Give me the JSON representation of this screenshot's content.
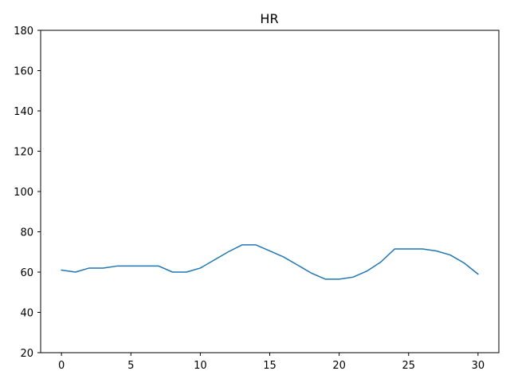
{
  "chart_data": {
    "type": "line",
    "title": "HR",
    "xlabel": "",
    "ylabel": "",
    "xlim": [
      -1.5,
      31.5
    ],
    "ylim": [
      20,
      180
    ],
    "xticks": [
      0,
      5,
      10,
      15,
      20,
      25,
      30
    ],
    "yticks": [
      20,
      40,
      60,
      80,
      100,
      120,
      140,
      160,
      180
    ],
    "grid": false,
    "legend": "none",
    "series": [
      {
        "color": "#1f77b4",
        "x": [
          0,
          1,
          2,
          3,
          4,
          5,
          6,
          7,
          8,
          9,
          10,
          11,
          12,
          13,
          14,
          15,
          16,
          17,
          18,
          19,
          20,
          21,
          22,
          23,
          24,
          25,
          26,
          27,
          28,
          29,
          30
        ],
        "values": [
          61,
          60,
          62,
          62,
          63,
          63,
          63,
          63,
          60,
          60,
          62,
          66,
          70,
          73.5,
          73.5,
          70.5,
          67.5,
          63.5,
          59.5,
          56.5,
          56.5,
          57.5,
          60.5,
          65,
          71.5,
          71.5,
          71.5,
          70.5,
          68.5,
          64.5,
          59
        ]
      }
    ]
  }
}
